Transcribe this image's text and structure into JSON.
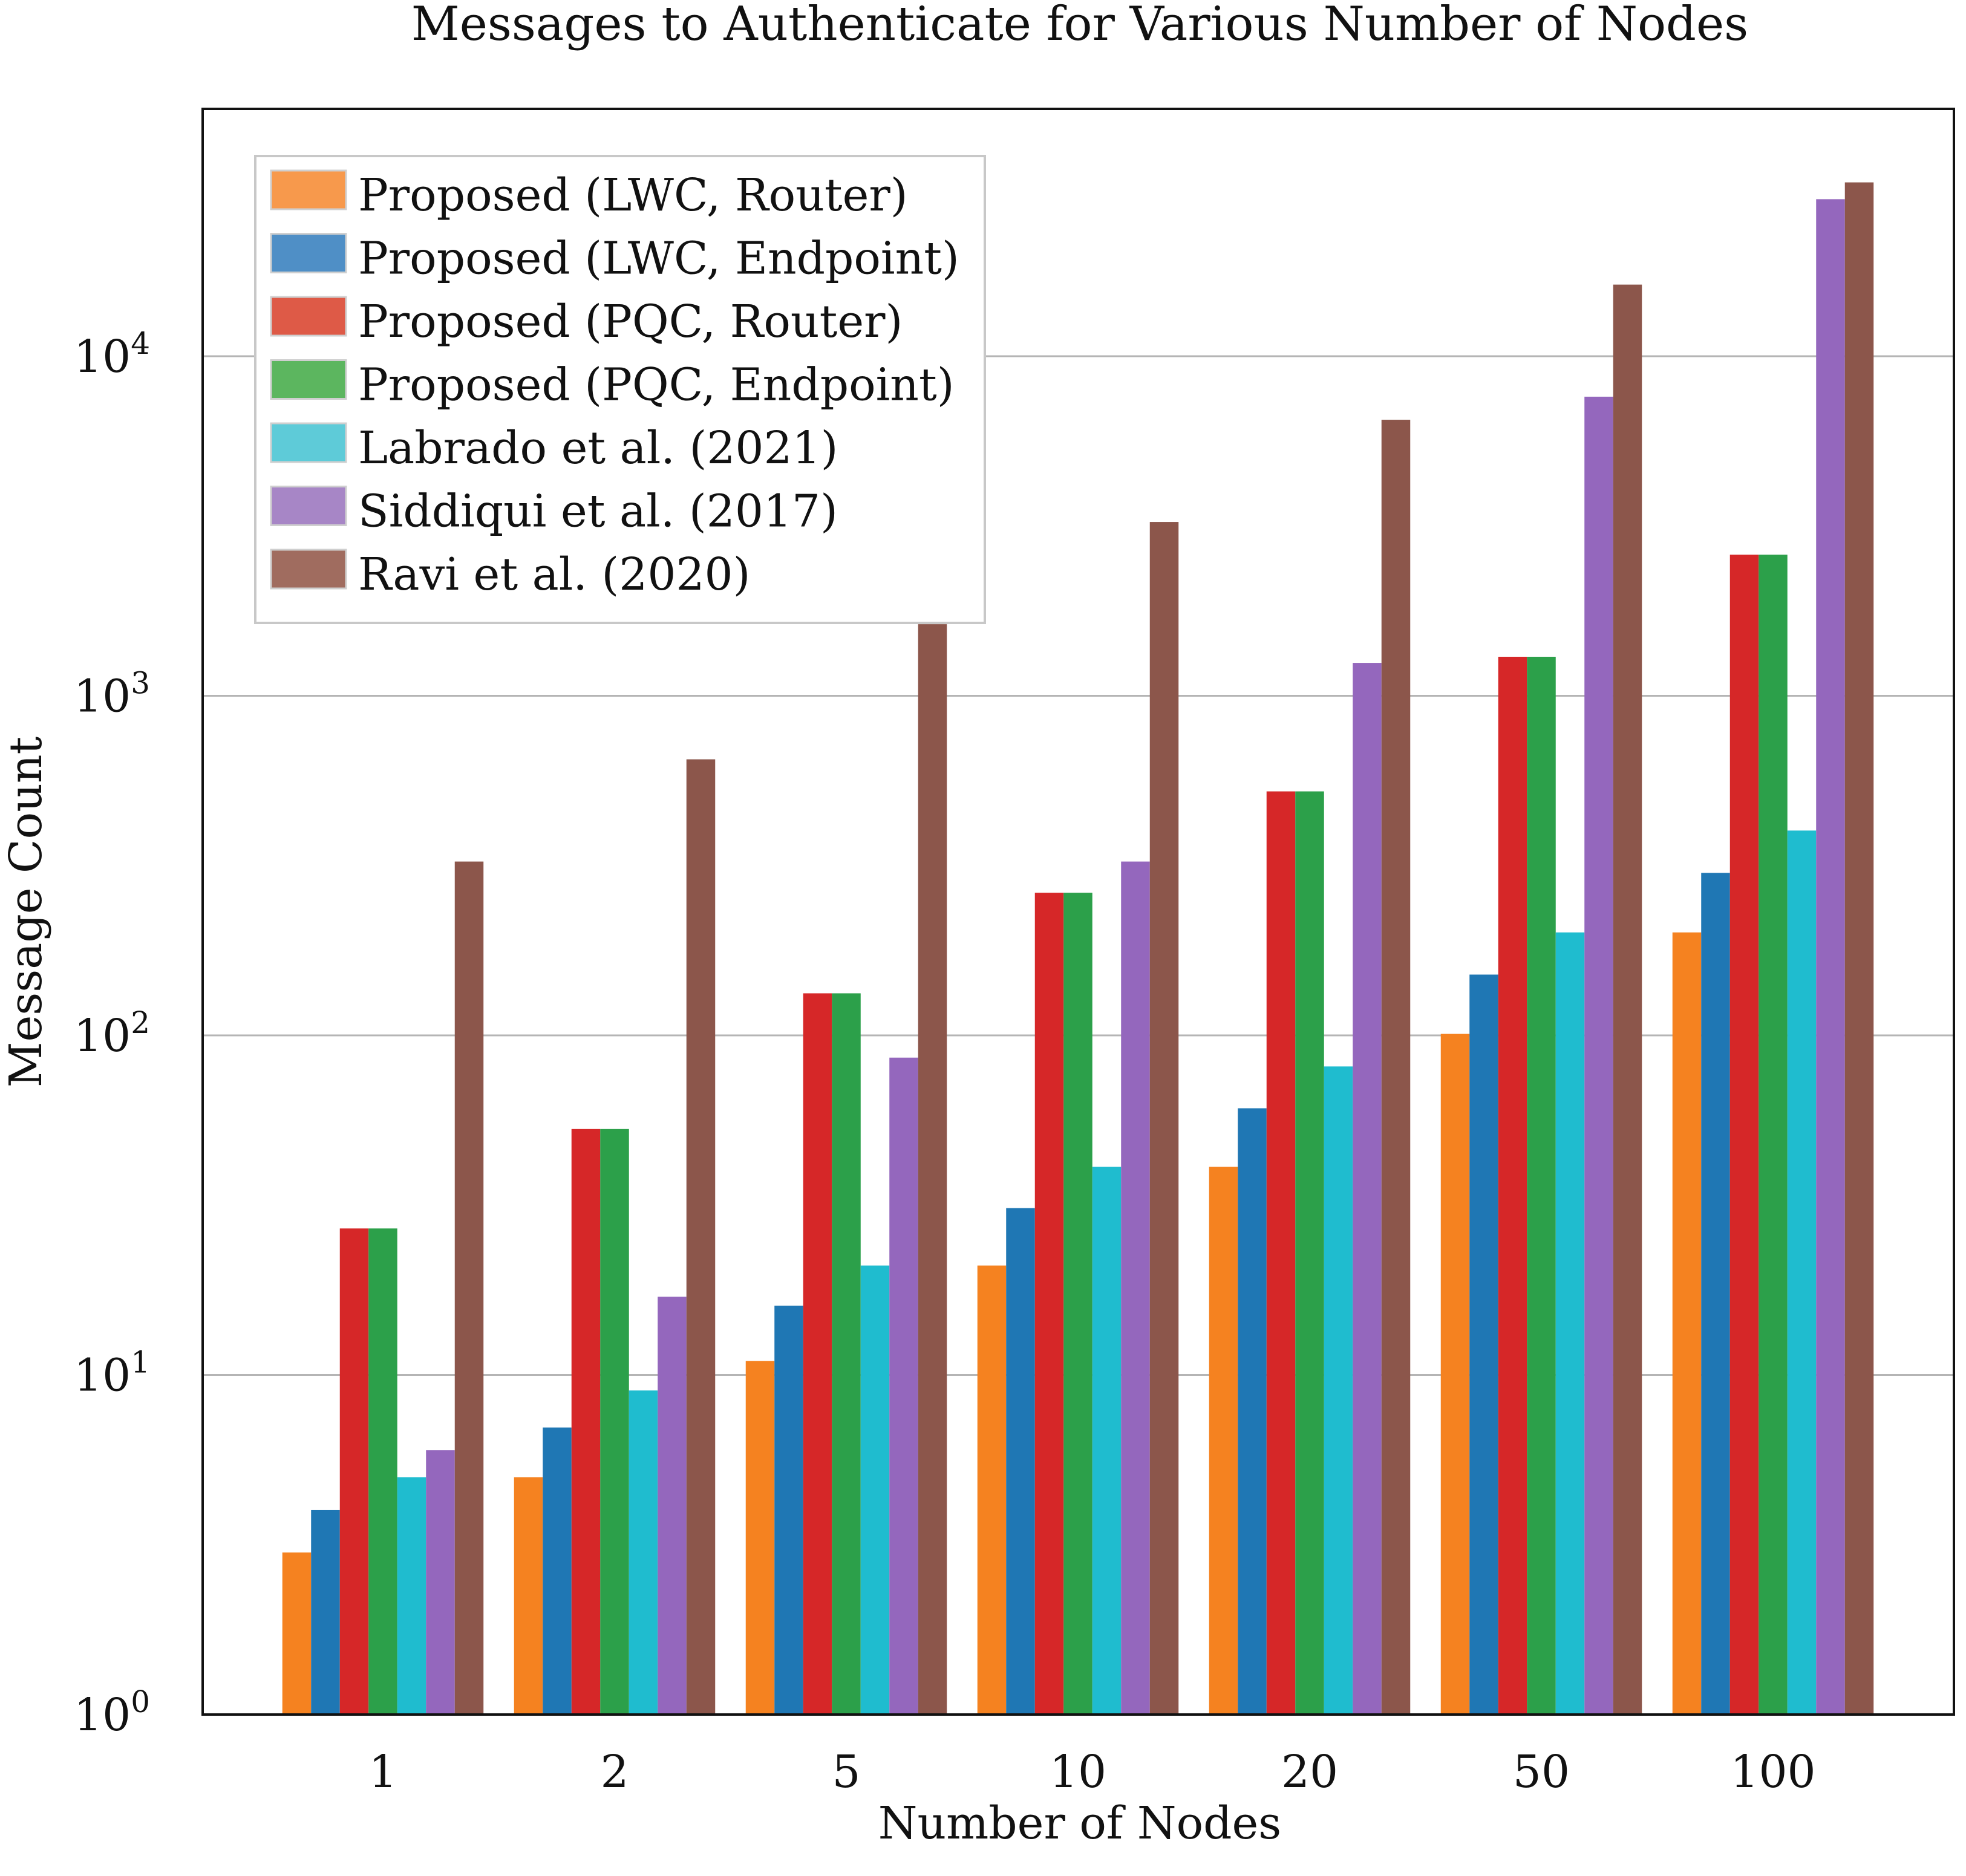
{
  "chart_data": {
    "type": "bar",
    "title": "Messages to Authenticate for Various Number of Nodes",
    "xlabel": "Number of Nodes",
    "ylabel": "Message Count",
    "yscale": "log",
    "ylim": [
      1,
      50000
    ],
    "grid": "horizontal",
    "legend_position": "top-left",
    "categories": [
      "1",
      "2",
      "5",
      "10",
      "20",
      "50",
      "100"
    ],
    "yticks": [
      {
        "value": 1,
        "base": "10",
        "exp": "0"
      },
      {
        "value": 10,
        "base": "10",
        "exp": "1"
      },
      {
        "value": 100,
        "base": "10",
        "exp": "2"
      },
      {
        "value": 1000,
        "base": "10",
        "exp": "3"
      },
      {
        "value": 10000,
        "base": "10",
        "exp": "4"
      }
    ],
    "series": [
      {
        "name": "Proposed (LWC, Router)",
        "color": "#f58220",
        "legend_color": "#f7994c",
        "values": [
          3,
          5,
          11,
          21,
          41,
          101,
          201
        ]
      },
      {
        "name": "Proposed (LWC, Endpoint)",
        "color": "#1f77b4",
        "legend_color": "#4f8fc6",
        "values": [
          4,
          7,
          16,
          31,
          61,
          151,
          301
        ]
      },
      {
        "name": "Proposed (PQC, Router)",
        "color": "#d62728",
        "legend_color": "#de5a47",
        "values": [
          27,
          53,
          133,
          263,
          523,
          1303,
          2603
        ]
      },
      {
        "name": "Proposed (PQC, Endpoint)",
        "color": "#2ca04a",
        "legend_color": "#5cb65f",
        "values": [
          27,
          53,
          133,
          263,
          523,
          1303,
          2603
        ]
      },
      {
        "name": "Labrado et al. (2021)",
        "color": "#1fbccf",
        "legend_color": "#5ecbd8",
        "values": [
          5,
          9,
          21,
          41,
          81,
          201,
          401
        ]
      },
      {
        "name": "Siddiqui et al. (2017)",
        "color": "#9467bd",
        "legend_color": "#a786c6",
        "values": [
          6,
          17,
          86,
          325,
          1250,
          7600,
          29000
        ]
      },
      {
        "name": "Ravi et al. (2020)",
        "color": "#8c564b",
        "legend_color": "#a06c5f",
        "values": [
          325,
          650,
          1625,
          3250,
          6500,
          16250,
          32500
        ]
      }
    ]
  }
}
